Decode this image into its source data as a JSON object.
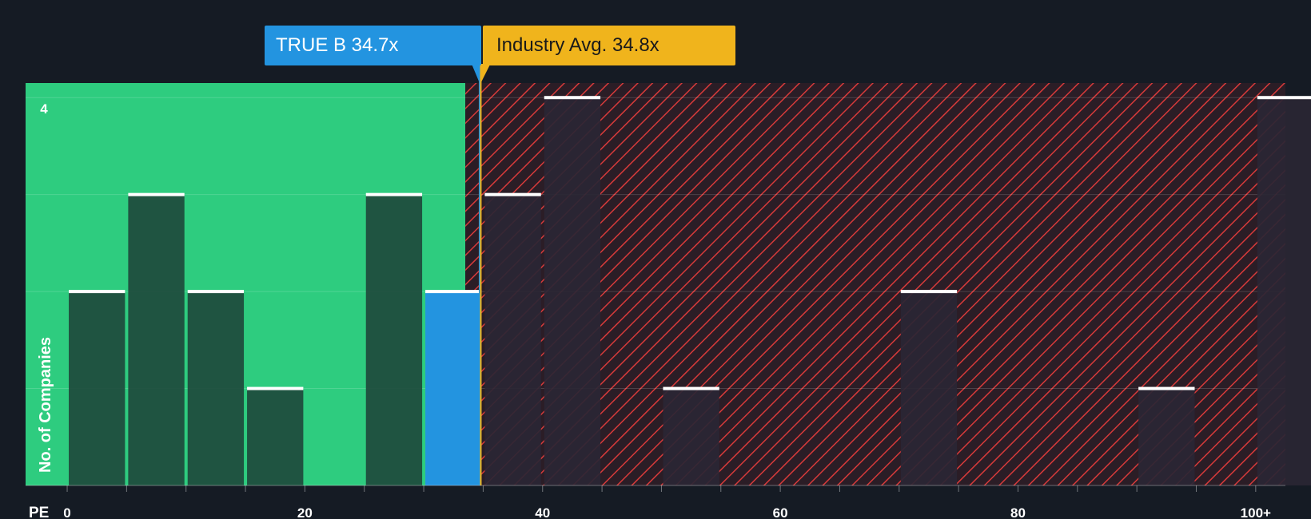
{
  "company_marker": {
    "label": "TRUE B 34.7x",
    "value": 34.7,
    "color": "#2394e0"
  },
  "industry_marker": {
    "label": "Industry Avg. 34.8x",
    "value": 34.8,
    "color": "#f0b41c"
  },
  "chart_data": {
    "type": "bar",
    "title": "",
    "xlabel": "PE",
    "ylabel": "No. of Companies",
    "xlim": [
      -3.5,
      102.5
    ],
    "ylim": [
      0,
      4.15
    ],
    "x_ticks": [
      {
        "value": 0,
        "label": "0"
      },
      {
        "value": 20,
        "label": "20"
      },
      {
        "value": 40,
        "label": "40"
      },
      {
        "value": 60,
        "label": "60"
      },
      {
        "value": 80,
        "label": "80"
      },
      {
        "value": 100,
        "label": "100+"
      }
    ],
    "y_ticks": [
      {
        "value": 4,
        "label": "4"
      }
    ],
    "grid": true,
    "bin_width": 5,
    "bins": [
      {
        "start": 0,
        "count": 2
      },
      {
        "start": 5,
        "count": 3
      },
      {
        "start": 10,
        "count": 2
      },
      {
        "start": 15,
        "count": 1
      },
      {
        "start": 25,
        "count": 3
      },
      {
        "start": 30,
        "count": 2,
        "highlight": true
      },
      {
        "start": 35,
        "count": 3
      },
      {
        "start": 40,
        "count": 4
      },
      {
        "start": 50,
        "count": 1
      },
      {
        "start": 70,
        "count": 2
      },
      {
        "start": 90,
        "count": 1
      },
      {
        "start": 100,
        "count": 4
      }
    ],
    "fair_range_end": 33.5,
    "colors": {
      "fair_zone": "#2ecc7f",
      "overvalued_zone": "#2b1d26",
      "hatch": "#d73a3a",
      "bar_in_fair_zone": "#1e4a3c",
      "bar_in_overvalued_zone": "#2a2634",
      "bar_cap": "#ffffff"
    }
  }
}
